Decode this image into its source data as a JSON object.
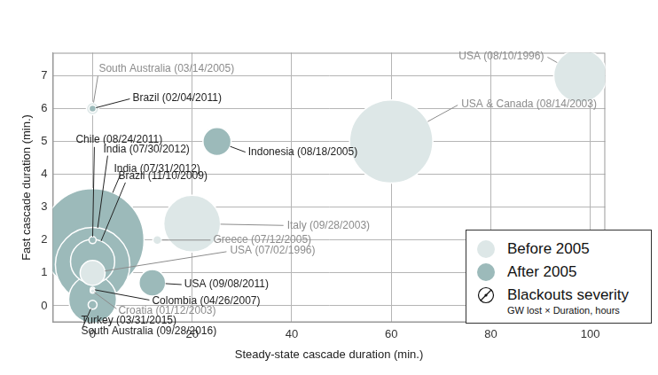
{
  "chart_data": {
    "type": "bubble",
    "x_label": "Steady-state cascade duration (min.)",
    "y_label": "Fast cascade duration (min.)",
    "xlim": [
      -8,
      103
    ],
    "ylim": [
      -0.5,
      7.7
    ],
    "xticks": [
      0,
      20,
      40,
      60,
      80,
      100
    ],
    "yticks": [
      0,
      1,
      2,
      3,
      4,
      5,
      6,
      7
    ],
    "grid": true,
    "legend": "lower right",
    "size_title": "Blackouts severity",
    "size_unit": "GW lost × Duration, hours",
    "series": [
      {
        "name": "Before 2005",
        "color": "#dde7e7",
        "labels": [
          "USA (08/10/1996)",
          "USA & Canada (08/14/2003)",
          "Italy (09/28/2003)",
          "South Australia (03/14/2005)",
          "Greece (07/12/2005)",
          "USA (07/02/1996)",
          "Croatia (01/12/2003)"
        ],
        "x": [
          98,
          60,
          20,
          0,
          13,
          0,
          0
        ],
        "values": [
          7,
          5,
          2.5,
          6,
          2,
          1.0,
          0.45
        ],
        "sizes": [
          100,
          245,
          114,
          5.4,
          2.8,
          22,
          0.7
        ]
      },
      {
        "name": "After 2005",
        "color": "#9cbaba",
        "labels": [
          "India (07/31/2012)",
          "India (07/30/2012)",
          "Brazil (11/10/2009)",
          "Turkey (03/31/2015)",
          "Indonesia (08/18/2005)",
          "USA (09/08/2011)",
          "South Australia (09/28/2016)",
          "Brazil (02/04/2011)",
          "Chile (08/24/2011)",
          "Colombia (04/26/2007)"
        ],
        "x": [
          0,
          0,
          0,
          0,
          25,
          12,
          0,
          0,
          0,
          0
        ],
        "values": [
          2,
          1.25,
          1.35,
          0.2,
          5,
          0.7,
          0.03,
          6,
          2,
          0.5
        ],
        "sizes": [
          374,
          196,
          69,
          81,
          28,
          25,
          2.8,
          1.8,
          1.8,
          0.7
        ]
      }
    ]
  }
}
